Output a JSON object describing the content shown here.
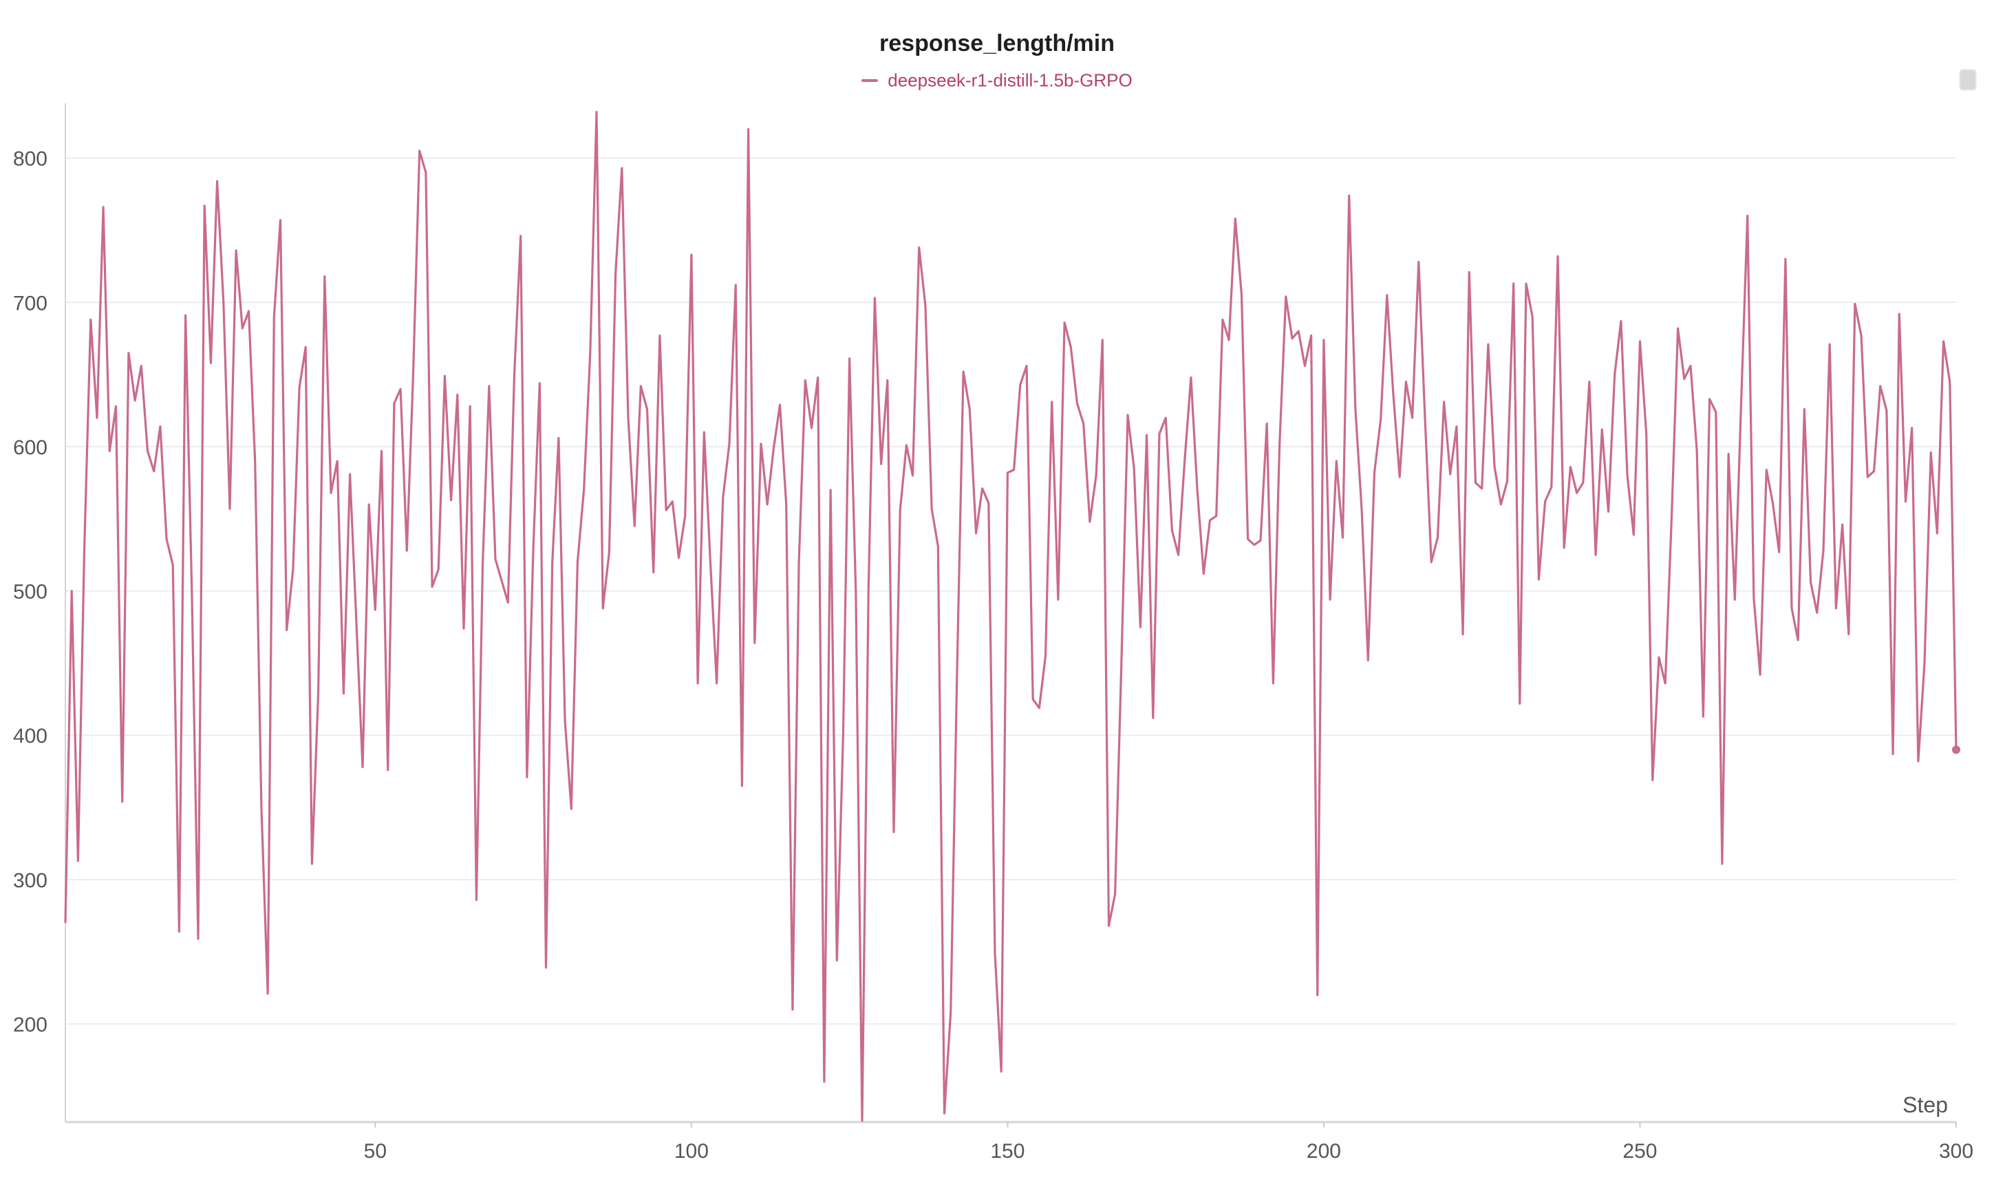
{
  "chart_data": {
    "type": "line",
    "title": "response_length/min",
    "xlabel": "Step",
    "ylabel": "",
    "xlim": [
      1,
      300
    ],
    "ylim": [
      132,
      838
    ],
    "xticks": [
      50,
      100,
      150,
      200,
      250,
      300
    ],
    "yticks": [
      200,
      300,
      400,
      500,
      600,
      700,
      800
    ],
    "grid": true,
    "legend": "top-center",
    "series": [
      {
        "name": "deepseek-r1-distill-1.5b-GRPO",
        "color": "#c96a8e",
        "x": [
          1,
          2,
          3,
          4,
          5,
          6,
          7,
          8,
          9,
          10,
          11,
          12,
          13,
          14,
          15,
          16,
          17,
          18,
          19,
          20,
          21,
          22,
          23,
          24,
          25,
          26,
          27,
          28,
          29,
          30,
          31,
          32,
          33,
          34,
          35,
          36,
          37,
          38,
          39,
          40,
          41,
          42,
          43,
          44,
          45,
          46,
          47,
          48,
          49,
          50,
          51,
          52,
          53,
          54,
          55,
          56,
          57,
          58,
          59,
          60,
          61,
          62,
          63,
          64,
          65,
          66,
          67,
          68,
          69,
          70,
          71,
          72,
          73,
          74,
          75,
          76,
          77,
          78,
          79,
          80,
          81,
          82,
          83,
          84,
          85,
          86,
          87,
          88,
          89,
          90,
          91,
          92,
          93,
          94,
          95,
          96,
          97,
          98,
          99,
          100,
          101,
          102,
          103,
          104,
          105,
          106,
          107,
          108,
          109,
          110,
          111,
          112,
          113,
          114,
          115,
          116,
          117,
          118,
          119,
          120,
          121,
          122,
          123,
          124,
          125,
          126,
          127,
          128,
          129,
          130,
          131,
          132,
          133,
          134,
          135,
          136,
          137,
          138,
          139,
          140,
          141,
          142,
          143,
          144,
          145,
          146,
          147,
          148,
          149,
          150,
          151,
          152,
          153,
          154,
          155,
          156,
          157,
          158,
          159,
          160,
          161,
          162,
          163,
          164,
          165,
          166,
          167,
          168,
          169,
          170,
          171,
          172,
          173,
          174,
          175,
          176,
          177,
          178,
          179,
          180,
          181,
          182,
          183,
          184,
          185,
          186,
          187,
          188,
          189,
          190,
          191,
          192,
          193,
          194,
          195,
          196,
          197,
          198,
          199,
          200,
          201,
          202,
          203,
          204,
          205,
          206,
          207,
          208,
          209,
          210,
          211,
          212,
          213,
          214,
          215,
          216,
          217,
          218,
          219,
          220,
          221,
          222,
          223,
          224,
          225,
          226,
          227,
          228,
          229,
          230,
          231,
          232,
          233,
          234,
          235,
          236,
          237,
          238,
          239,
          240,
          241,
          242,
          243,
          244,
          245,
          246,
          247,
          248,
          249,
          250,
          251,
          252,
          253,
          254,
          255,
          256,
          257,
          258,
          259,
          260,
          261,
          262,
          263,
          264,
          265,
          266,
          267,
          268,
          269,
          270,
          271,
          272,
          273,
          274,
          275,
          276,
          277,
          278,
          279,
          280,
          281,
          282,
          283,
          284,
          285,
          286,
          287,
          288,
          289,
          290,
          291,
          292,
          293,
          294,
          295,
          296,
          297,
          298,
          299,
          300
        ],
        "y": [
          270,
          500,
          313,
          530,
          688,
          620,
          766,
          597,
          628,
          354,
          665,
          632,
          656,
          597,
          583,
          614,
          536,
          518,
          264,
          691,
          500,
          259,
          767,
          658,
          784,
          700,
          557,
          736,
          682,
          694,
          590,
          350,
          221,
          690,
          757,
          473,
          515,
          641,
          669,
          311,
          430,
          718,
          568,
          590,
          429,
          581,
          480,
          378,
          560,
          487,
          597,
          376,
          630,
          640,
          528,
          650,
          805,
          790,
          503,
          515,
          649,
          563,
          636,
          474,
          628,
          286,
          520,
          642,
          522,
          507,
          492,
          650,
          746,
          371,
          530,
          644,
          239,
          520,
          606,
          410,
          349,
          520,
          570,
          665,
          832,
          488,
          527,
          720,
          793,
          620,
          545,
          642,
          626,
          513,
          677,
          556,
          562,
          523,
          552,
          733,
          436,
          610,
          520,
          436,
          565,
          602,
          712,
          365,
          820,
          464,
          602,
          560,
          599,
          629,
          560,
          210,
          520,
          646,
          613,
          648,
          160,
          570,
          244,
          400,
          661,
          500,
          133,
          500,
          703,
          588,
          646,
          333,
          556,
          601,
          580,
          738,
          698,
          557,
          531,
          138,
          208,
          443,
          652,
          626,
          540,
          571,
          561,
          249,
          167,
          582,
          584,
          643,
          656,
          425,
          419,
          455,
          631,
          494,
          686,
          669,
          630,
          616,
          548,
          580,
          674,
          268,
          290,
          450,
          622,
          585,
          475,
          608,
          412,
          609,
          620,
          542,
          525,
          590,
          648,
          570,
          512,
          549,
          552,
          688,
          674,
          758,
          705,
          536,
          532,
          535,
          616,
          436,
          601,
          704,
          675,
          680,
          656,
          677,
          220,
          674,
          494,
          590,
          537,
          774,
          626,
          556,
          452,
          582,
          619,
          705,
          636,
          579,
          645,
          620,
          728,
          620,
          520,
          537,
          631,
          581,
          614,
          470,
          721,
          575,
          571,
          671,
          586,
          560,
          576,
          713,
          422,
          713,
          690,
          508,
          562,
          572,
          732,
          530,
          586,
          568,
          575,
          645,
          525,
          612,
          555,
          650,
          687,
          580,
          539,
          673,
          609,
          369,
          454,
          436,
          550,
          682,
          647,
          656,
          597,
          413,
          633,
          624,
          311,
          595,
          494,
          630,
          760,
          495,
          442,
          584,
          561,
          527,
          730,
          488,
          466,
          626,
          506,
          485,
          528,
          671,
          488,
          546,
          470,
          699,
          677,
          579,
          583,
          642,
          625,
          387,
          692,
          562,
          613,
          382,
          450,
          596,
          540,
          673,
          645,
          390
        ]
      }
    ]
  }
}
